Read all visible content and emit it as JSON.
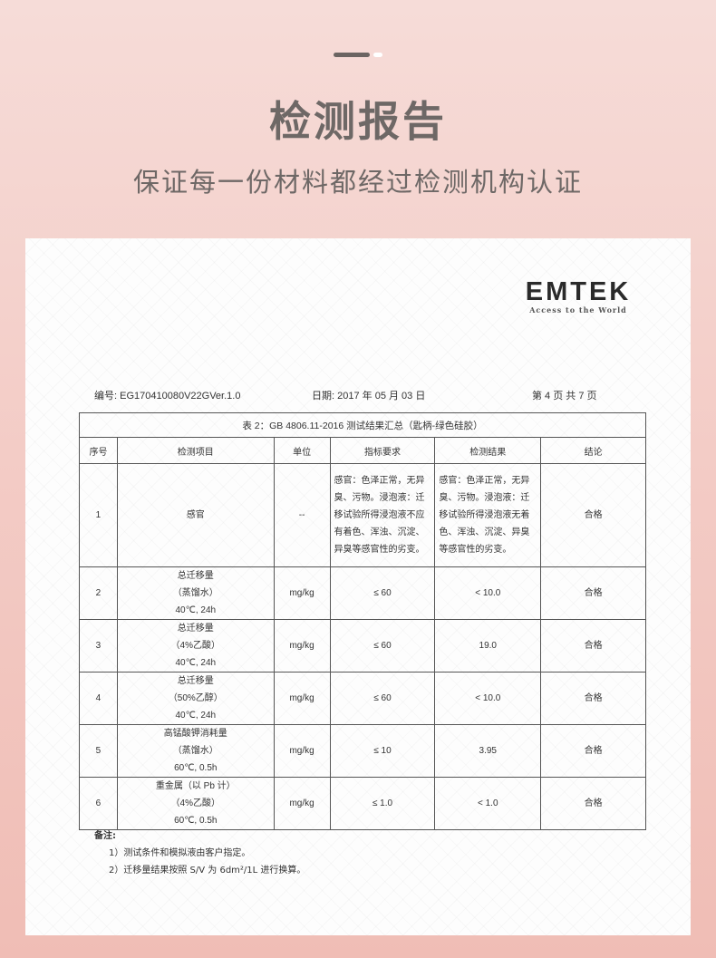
{
  "header": {
    "title": "检测报告",
    "subtitle": "保证每一份材料都经过检测机构认证"
  },
  "logo": {
    "name": "EMTEK",
    "tagline": "Access to the World"
  },
  "report": {
    "number": "编号: EG170410080V22GVer.1.0",
    "date": "日期: 2017 年 05 月 03 日",
    "page": "第 4 页 共 7 页"
  },
  "table": {
    "caption": "表 2：GB 4806.11-2016 测试结果汇总（匙柄-绿色硅胶）",
    "headers": [
      "序号",
      "检测项目",
      "单位",
      "指标要求",
      "检测结果",
      "结论"
    ],
    "rows": [
      {
        "no": "1",
        "item": [
          "感官"
        ],
        "unit": "--",
        "req": "感官：色泽正常，无异臭、污物。浸泡液：迁移试验所得浸泡液不应有着色、浑浊、沉淀、异臭等感官性的劣变。",
        "result": "感官：色泽正常，无异臭、污物。浸泡液：迁移试验所得浸泡液无着色、浑浊、沉淀、异臭等感官性的劣变。",
        "verdict": "合格"
      },
      {
        "no": "2",
        "item": [
          "总迁移量",
          "（蒸馏水）",
          "40℃, 24h"
        ],
        "unit": "mg/kg",
        "req": "≤ 60",
        "result": "< 10.0",
        "verdict": "合格"
      },
      {
        "no": "3",
        "item": [
          "总迁移量",
          "（4%乙酸）",
          "40℃, 24h"
        ],
        "unit": "mg/kg",
        "req": "≤ 60",
        "result": "19.0",
        "verdict": "合格"
      },
      {
        "no": "4",
        "item": [
          "总迁移量",
          "（50%乙醇）",
          "40℃, 24h"
        ],
        "unit": "mg/kg",
        "req": "≤ 60",
        "result": "< 10.0",
        "verdict": "合格"
      },
      {
        "no": "5",
        "item": [
          "高锰酸钾消耗量",
          "（蒸馏水）",
          "60℃, 0.5h"
        ],
        "unit": "mg/kg",
        "req": "≤ 10",
        "result": "3.95",
        "verdict": "合格"
      },
      {
        "no": "6",
        "item": [
          "重金属（以 Pb 计）",
          "（4%乙酸）",
          "60℃, 0.5h"
        ],
        "unit": "mg/kg",
        "req": "≤ 1.0",
        "result": "< 1.0",
        "verdict": "合格"
      }
    ]
  },
  "notes": {
    "label": "备注:",
    "items": [
      "1）测试条件和模拟液由客户指定。",
      "2）迁移量结果按照 S/V 为 6dm²/1L 进行换算。"
    ]
  }
}
